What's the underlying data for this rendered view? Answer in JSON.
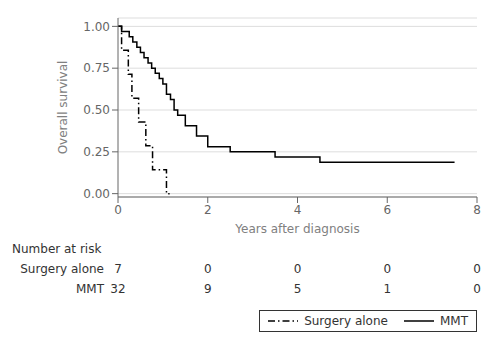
{
  "chart_data": {
    "type": "line",
    "step": true,
    "xlabel": "Years after diagnosis",
    "ylabel": "Overall survival",
    "xlim": [
      0,
      8
    ],
    "ylim": [
      -0.02,
      1.05
    ],
    "xticks": [
      0,
      2,
      4,
      6,
      8
    ],
    "yticks": [
      {
        "value": 0.0,
        "label": "0.00"
      },
      0.25,
      {
        "value": 0.5,
        "label": "0.50"
      },
      0.75,
      {
        "value": 1.0,
        "label": "1.00"
      }
    ],
    "grid": "y",
    "legend": "bottom",
    "series": [
      {
        "name": "Surgery alone",
        "color": "#000000",
        "line_style": "dashdot",
        "x": [
          0,
          0.08,
          0.15,
          0.23,
          0.31,
          0.38,
          0.46,
          0.54,
          0.62,
          0.69,
          0.77,
          0.85,
          0.92,
          1.0,
          1.08,
          1.15
        ],
        "values": [
          1.0,
          0.857,
          0.857,
          0.714,
          0.571,
          0.571,
          0.429,
          0.429,
          0.286,
          0.286,
          0.143,
          0.143,
          0.143,
          0.143,
          0.0,
          0.0
        ]
      },
      {
        "name": "MMT",
        "color": "#000000",
        "line_style": "solid",
        "x": [
          0,
          0.08,
          0.17,
          0.25,
          0.33,
          0.42,
          0.5,
          0.58,
          0.67,
          0.75,
          0.83,
          0.92,
          1.0,
          1.08,
          1.17,
          1.25,
          1.33,
          1.5,
          1.75,
          2.0,
          2.5,
          3.0,
          3.5,
          4.0,
          4.5,
          7.5
        ],
        "values": [
          1.0,
          0.969,
          0.969,
          0.938,
          0.906,
          0.875,
          0.844,
          0.813,
          0.781,
          0.75,
          0.719,
          0.688,
          0.656,
          0.594,
          0.563,
          0.5,
          0.469,
          0.406,
          0.344,
          0.281,
          0.25,
          0.25,
          0.219,
          0.219,
          0.188,
          0.188
        ]
      }
    ],
    "risk_table": {
      "header": "Number at risk",
      "times": [
        0,
        2,
        4,
        6,
        8
      ],
      "rows": [
        {
          "name": "Surgery alone",
          "counts": [
            7,
            0,
            0,
            0,
            0
          ]
        },
        {
          "name": "MMT",
          "counts": [
            32,
            9,
            5,
            1,
            0
          ]
        }
      ]
    }
  }
}
